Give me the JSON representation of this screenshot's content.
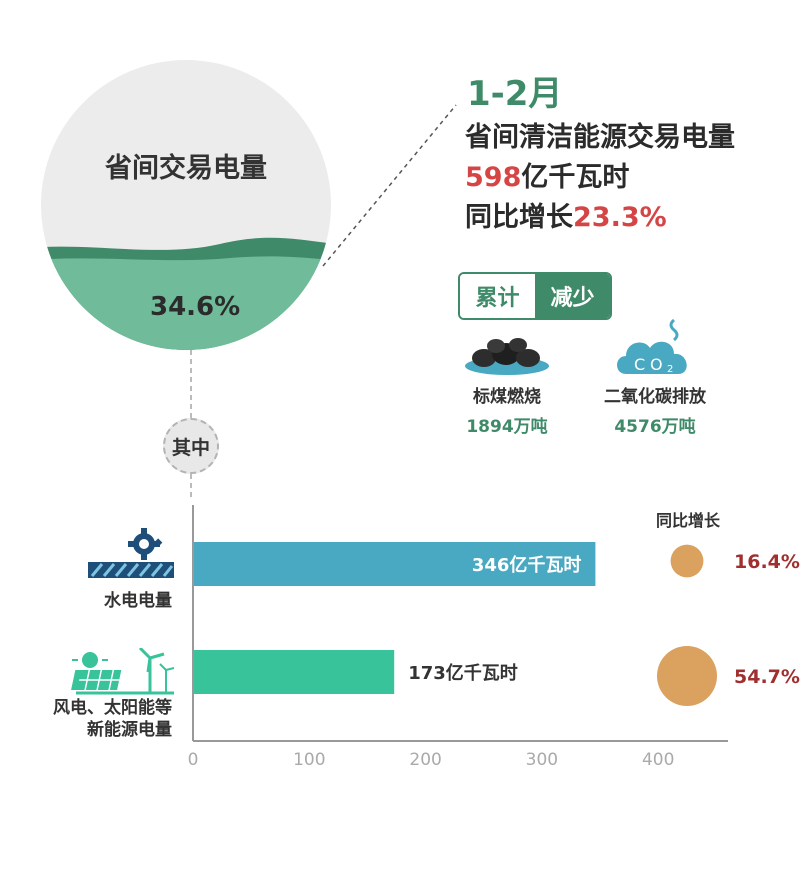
{
  "pie": {
    "title": "省间交易电量",
    "share_label": "34.6%",
    "share_value": 34.6
  },
  "headline": {
    "period": "1-2月",
    "line1": "省间清洁能源交易电量",
    "amount_value": "598",
    "amount_unit": "亿千瓦时",
    "growth_prefix": "同比增长",
    "growth_value": "23.3%"
  },
  "badge": {
    "left": "累计",
    "right": "减少"
  },
  "reductions": [
    {
      "label": "标煤燃烧",
      "value": "1894万吨",
      "icon": "coal-icon"
    },
    {
      "label": "二氧化碳排放",
      "value": "4576万吨",
      "icon": "co2-cloud-icon"
    }
  ],
  "divider_label": "其中",
  "colors": {
    "dark_green": "#3f8a69",
    "mid_green": "#6fbb9a",
    "pie_gray": "#ececec",
    "hydro_bar": "#4aa9c2",
    "wind_solar_bar": "#38c39b",
    "bubble": "#dba25f",
    "growth_red": "#a03030",
    "headline_red": "#d64545"
  },
  "chart_data": {
    "type": "bar",
    "orientation": "horizontal",
    "categories": [
      "水电电量",
      "风电、太阳能等新能源电量"
    ],
    "category_lines": [
      [
        "水电电量"
      ],
      [
        "风电、太阳能等",
        "新能源电量"
      ]
    ],
    "values": [
      346,
      173
    ],
    "value_labels": [
      "346亿千瓦时",
      "173亿千瓦时"
    ],
    "xticks": [
      0,
      100,
      200,
      300,
      400
    ],
    "xlim": [
      0,
      460
    ],
    "growth_title": "同比增长",
    "growth_values": [
      16.4,
      54.7
    ],
    "growth_labels": [
      "16.4%",
      "54.7%"
    ]
  }
}
